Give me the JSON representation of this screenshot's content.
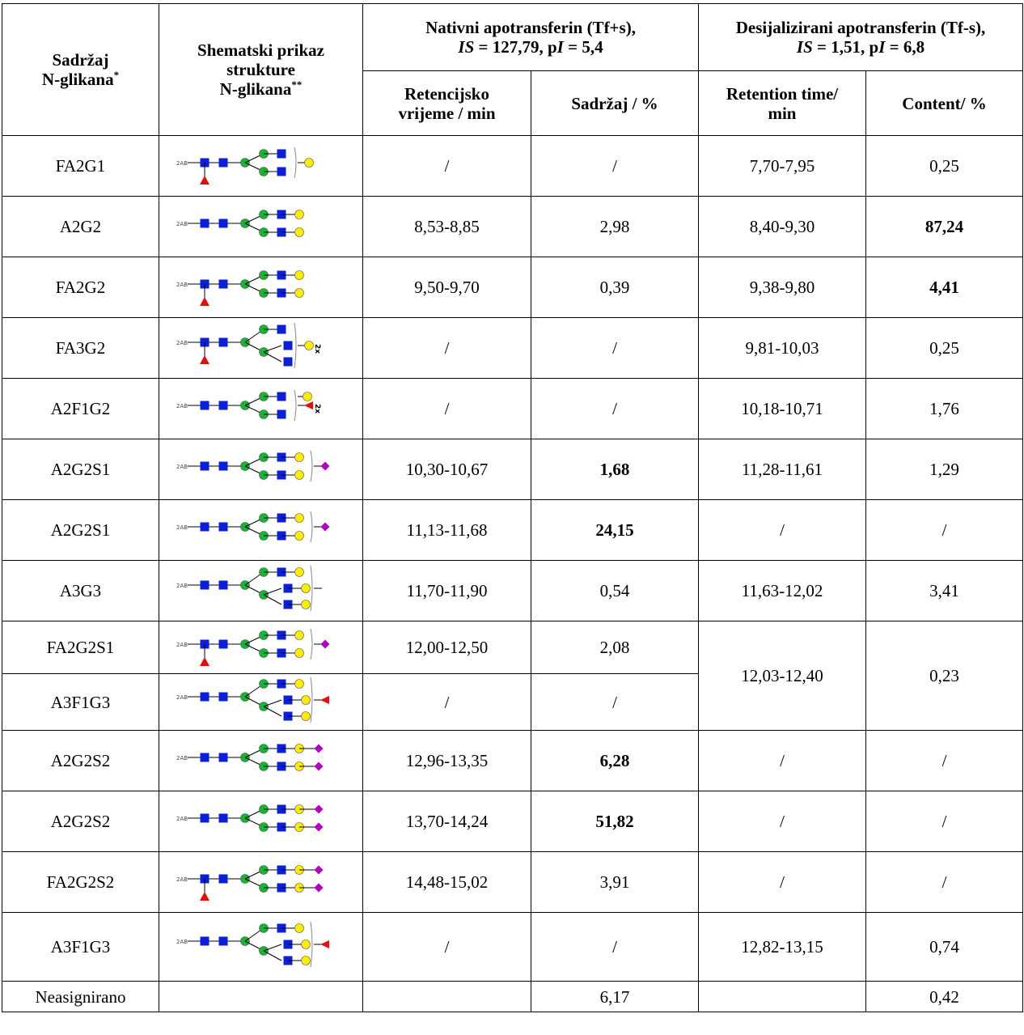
{
  "colors": {
    "glcnac": "#0a1fd6",
    "mannose": "#13b635",
    "galactose": "#ffec00",
    "fucose": "#e01010",
    "sialic": "#b000c0"
  },
  "header": {
    "col1": "Sadržaj",
    "col1b": "N-glikana",
    "col1sup": "*",
    "col2a": "Shematski prikaz",
    "col2b": "strukture",
    "col2c": "N-glikana",
    "col2sup": "**",
    "native_title": "Nativni apotransferin (Tf+s),",
    "native_is_label": "IS",
    "native_is_value": " = 127,79, p",
    "native_pi_label": "I",
    "native_pi_value": " = 5,4",
    "desial_title": "Desijalizirani apotransferin (Tf-s),",
    "desial_is_label": "IS",
    "desial_is_value": " = 1,51, p",
    "desial_pi_label": "I",
    "desial_pi_value": " = 6,8",
    "retention_a": "Retencijsko",
    "retention_b": "vrijeme / min",
    "content_native": "Sadržaj / %",
    "retention_en_a": "Retention time/",
    "retention_en_b": "min",
    "content_en": "Content/ %"
  },
  "glycan_label": "2AB",
  "rows": [
    {
      "name": "FA2G1",
      "glycan": "FA2G1",
      "n_rt": "/",
      "n_c": "/",
      "d_rt": "7,70-7,95",
      "d_c": "0,25"
    },
    {
      "name": "A2G2",
      "glycan": "A2G2",
      "n_rt": "8,53-8,85",
      "n_c": "2,98",
      "d_rt": "8,40-9,30",
      "d_c": "87,24",
      "d_c_bold": true
    },
    {
      "name": "FA2G2",
      "glycan": "FA2G2",
      "n_rt": "9,50-9,70",
      "n_c": "0,39",
      "d_rt": "9,38-9,80",
      "d_c": "4,41",
      "d_c_bold": true
    },
    {
      "name": "FA3G2",
      "glycan": "FA3G2",
      "n_rt": "/",
      "n_c": "/",
      "d_rt": "9,81-10,03",
      "d_c": "0,25",
      "multiplier": "2x"
    },
    {
      "name": "A2F1G2",
      "glycan": "A2F1G2",
      "n_rt": "/",
      "n_c": "/",
      "d_rt": "10,18-10,71",
      "d_c": "1,76",
      "multiplier": "2x"
    },
    {
      "name": "A2G2S1",
      "glycan": "A2G2S1",
      "n_rt": "10,30-10,67",
      "n_c": "1,68",
      "n_c_bold": true,
      "d_rt": "11,28-11,61",
      "d_c": "1,29"
    },
    {
      "name": "A2G2S1",
      "glycan": "A2G2S1",
      "n_rt": "11,13-11,68",
      "n_c": "24,15",
      "n_c_bold": true,
      "d_rt": "/",
      "d_c": "/"
    },
    {
      "name": "A3G3",
      "glycan": "A3G3",
      "n_rt": "11,70-11,90",
      "n_c": "0,54",
      "d_rt": "11,63-12,02",
      "d_c": "3,41"
    },
    {
      "name": "FA2G2S1",
      "glycan": "FA2G2S1",
      "n_rt": "12,00-12,50",
      "n_c": "2,08",
      "d_rt": "12,03-12,40",
      "d_c": "0,23"
    },
    {
      "name": "A3F1G3",
      "glycan": "A3F1G3",
      "n_rt": "/",
      "n_c": "/"
    },
    {
      "name": "A2G2S2",
      "glycan": "A2G2S2",
      "n_rt": "12,96-13,35",
      "n_c": "6,28",
      "n_c_bold": true,
      "d_rt": "/",
      "d_c": "/"
    },
    {
      "name": "A2G2S2",
      "glycan": "A2G2S2",
      "n_rt": "13,70-14,24",
      "n_c": "51,82",
      "n_c_bold": true,
      "d_rt": "/",
      "d_c": "/"
    },
    {
      "name": "FA2G2S2",
      "glycan": "FA2G2S2",
      "n_rt": "14,48-15,02",
      "n_c": "3,91",
      "d_rt": "/",
      "d_c": "/"
    },
    {
      "name": "A3F1G3",
      "glycan": "A3F1G3",
      "n_rt": "/",
      "n_c": "/",
      "d_rt": "12,82-13,15",
      "d_c": "0,74"
    },
    {
      "name": "Neasignirano",
      "glycan": "",
      "n_rt": "",
      "n_c": "6,17",
      "d_rt": "",
      "d_c": "0,42"
    }
  ]
}
